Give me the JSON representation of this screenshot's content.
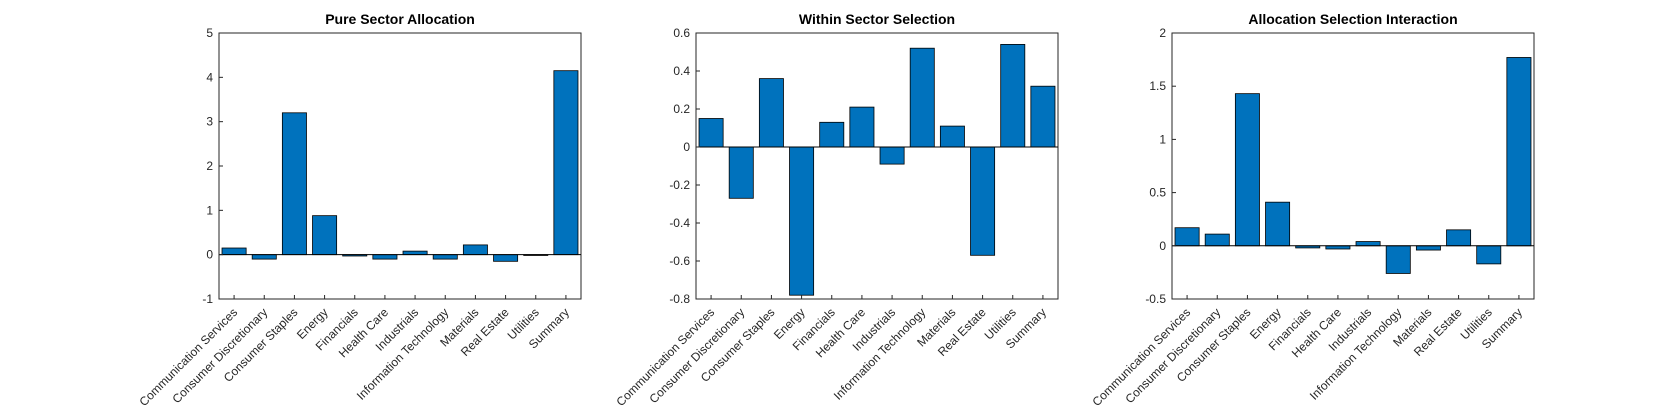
{
  "chart_data": [
    {
      "type": "bar",
      "title": "Pure Sector Allocation",
      "categories": [
        "Communication Services",
        "Consumer Discretionary",
        "Consumer Staples",
        "Energy",
        "Financials",
        "Health Care",
        "Industrials",
        "Information Technology",
        "Materials",
        "Real Estate",
        "Utilities",
        "Summary"
      ],
      "values": [
        0.15,
        -0.1,
        3.2,
        0.88,
        -0.03,
        -0.1,
        0.08,
        -0.1,
        0.22,
        -0.15,
        0.0,
        4.15
      ],
      "ylim": [
        -1,
        5
      ],
      "yticks": [
        -1,
        0,
        1,
        2,
        3,
        4,
        5
      ],
      "ytick_labels": [
        "-1",
        "0",
        "1",
        "2",
        "3",
        "4",
        "5"
      ],
      "bar_color": "#0072BD",
      "grid": false
    },
    {
      "type": "bar",
      "title": "Within Sector Selection",
      "categories": [
        "Communication Services",
        "Consumer Discretionary",
        "Consumer Staples",
        "Energy",
        "Financials",
        "Health Care",
        "Industrials",
        "Information Technology",
        "Materials",
        "Real Estate",
        "Utilities",
        "Summary"
      ],
      "values": [
        0.15,
        -0.27,
        0.36,
        -0.78,
        0.13,
        0.21,
        -0.09,
        0.52,
        0.11,
        -0.57,
        0.54,
        0.32
      ],
      "ylim": [
        -0.8,
        0.6
      ],
      "yticks": [
        -0.8,
        -0.6,
        -0.4,
        -0.2,
        0,
        0.2,
        0.4,
        0.6
      ],
      "ytick_labels": [
        "-0.8",
        "-0.6",
        "-0.4",
        "-0.2",
        "0",
        "0.2",
        "0.4",
        "0.6"
      ],
      "bar_color": "#0072BD",
      "grid": false
    },
    {
      "type": "bar",
      "title": "Allocation Selection Interaction",
      "categories": [
        "Communication Services",
        "Consumer Discretionary",
        "Consumer Staples",
        "Energy",
        "Financials",
        "Health Care",
        "Industrials",
        "Information Technology",
        "Materials",
        "Real Estate",
        "Utilities",
        "Summary"
      ],
      "values": [
        0.17,
        0.11,
        1.43,
        0.41,
        -0.02,
        -0.03,
        0.04,
        -0.26,
        -0.04,
        0.15,
        -0.17,
        1.77
      ],
      "ylim": [
        -0.5,
        2
      ],
      "yticks": [
        -0.5,
        0,
        0.5,
        1,
        1.5,
        2
      ],
      "ytick_labels": [
        "-0.5",
        "0",
        "0.5",
        "1",
        "1.5",
        "2"
      ],
      "bar_color": "#0072BD",
      "grid": false
    }
  ]
}
